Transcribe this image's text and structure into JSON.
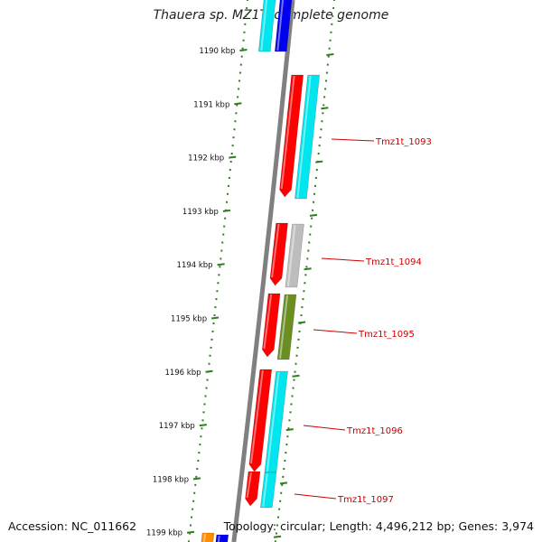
{
  "title": "Thauera sp. MZ1T, complete genome",
  "accession": "Accession: NC_011662",
  "summary": "Topology: circular; Length: 4,496,212 bp; Genes: 3,974",
  "colors": {
    "backbone": "#808080",
    "tick": "#2e7d1e",
    "red": "#ff0000",
    "cyan": "#00e5ee",
    "blue": "#0000ee",
    "grey": "#bdbdbd",
    "olive": "#6b8e23",
    "orange": "#ff8c00",
    "label": "#cc0000"
  },
  "ticks": [
    {
      "label": "1190 kbp"
    },
    {
      "label": "1191 kbp"
    },
    {
      "label": "1192 kbp"
    },
    {
      "label": "1193 kbp"
    },
    {
      "label": "1194 kbp"
    },
    {
      "label": "1195 kbp"
    },
    {
      "label": "1196 kbp"
    },
    {
      "label": "1197 kbp"
    },
    {
      "label": "1198 kbp"
    },
    {
      "label": "1199 kbp"
    }
  ],
  "gene_labels": [
    {
      "text": "Tmz1t_1093"
    },
    {
      "text": "Tmz1t_1094"
    },
    {
      "text": "Tmz1t_1095"
    },
    {
      "text": "Tmz1t_1096"
    },
    {
      "text": "Tmz1t_1097"
    }
  ]
}
